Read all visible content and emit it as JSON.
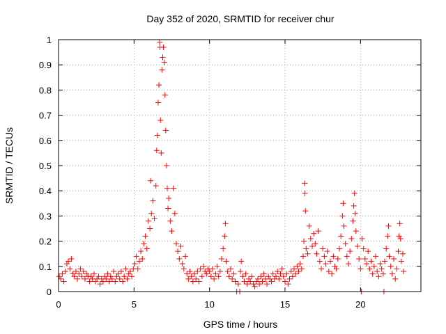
{
  "chart_data": {
    "type": "scatter",
    "title": "Day 352 of 2020, SRMTID for receiver chur",
    "xlabel": "GPS time / hours",
    "ylabel": "SRMTID / TECUs",
    "xlim": [
      0,
      24
    ],
    "ylim": [
      0,
      1
    ],
    "xticks": [
      0,
      5,
      10,
      15,
      20
    ],
    "xtick_labels": [
      "0",
      "5",
      "10",
      "15",
      "20"
    ],
    "yticks": [
      0,
      0.1,
      0.2,
      0.3,
      0.4,
      0.5,
      0.6,
      0.7,
      0.8,
      0.9,
      1
    ],
    "ytick_labels": [
      "0",
      "0.1",
      "0.2",
      "0.3",
      "0.4",
      "0.5",
      "0.6",
      "0.7",
      "0.8",
      "0.9",
      "1"
    ],
    "grid": true,
    "marker": "+",
    "series": [
      {
        "name": "SRMTID",
        "color": "#ff0000",
        "points": [
          [
            0.05,
            0.06
          ],
          [
            0.15,
            0.05
          ],
          [
            0.25,
            0.07
          ],
          [
            0.35,
            0.04
          ],
          [
            0.45,
            0.08
          ],
          [
            0.55,
            0.11
          ],
          [
            0.65,
            0.12
          ],
          [
            0.75,
            0.09
          ],
          [
            0.85,
            0.13
          ],
          [
            0.95,
            0.07
          ],
          [
            1.05,
            0.06
          ],
          [
            1.15,
            0.08
          ],
          [
            1.25,
            0.05
          ],
          [
            1.35,
            0.07
          ],
          [
            1.45,
            0.09
          ],
          [
            1.55,
            0.06
          ],
          [
            1.65,
            0.08
          ],
          [
            1.75,
            0.05
          ],
          [
            1.85,
            0.07
          ],
          [
            1.95,
            0.06
          ],
          [
            2.05,
            0.04
          ],
          [
            2.15,
            0.06
          ],
          [
            2.25,
            0.05
          ],
          [
            2.35,
            0.07
          ],
          [
            2.45,
            0.04
          ],
          [
            2.55,
            0.05
          ],
          [
            2.65,
            0.06
          ],
          [
            2.75,
            0.03
          ],
          [
            2.85,
            0.05
          ],
          [
            2.95,
            0.04
          ],
          [
            3.05,
            0.06
          ],
          [
            3.15,
            0.05
          ],
          [
            3.25,
            0.07
          ],
          [
            3.35,
            0.04
          ],
          [
            3.45,
            0.06
          ],
          [
            3.55,
            0.05
          ],
          [
            3.65,
            0.08
          ],
          [
            3.75,
            0.04
          ],
          [
            3.85,
            0.06
          ],
          [
            3.95,
            0.07
          ],
          [
            4.05,
            0.05
          ],
          [
            4.15,
            0.08
          ],
          [
            4.25,
            0.04
          ],
          [
            4.35,
            0.06
          ],
          [
            4.45,
            0.09
          ],
          [
            4.55,
            0.05
          ],
          [
            4.65,
            0.07
          ],
          [
            4.75,
            0.08
          ],
          [
            4.85,
            0.06
          ],
          [
            4.95,
            0.09
          ],
          [
            5.05,
            0.11
          ],
          [
            5.15,
            0.14
          ],
          [
            5.25,
            0.09
          ],
          [
            5.35,
            0.12
          ],
          [
            5.45,
            0.16
          ],
          [
            5.55,
            0.13
          ],
          [
            5.65,
            0.19
          ],
          [
            5.75,
            0.22
          ],
          [
            5.85,
            0.17
          ],
          [
            5.95,
            0.28
          ],
          [
            6.05,
            0.25
          ],
          [
            6.1,
            0.44
          ],
          [
            6.15,
            0.31
          ],
          [
            6.25,
            0.36
          ],
          [
            6.35,
            0.29
          ],
          [
            6.45,
            0.42
          ],
          [
            6.5,
            0.56
          ],
          [
            6.55,
            0.62
          ],
          [
            6.6,
            0.75
          ],
          [
            6.65,
            0.82
          ],
          [
            6.7,
            0.99
          ],
          [
            6.72,
            0.97
          ],
          [
            6.75,
            0.68
          ],
          [
            6.8,
            0.55
          ],
          [
            6.85,
            0.88
          ],
          [
            6.9,
            0.93
          ],
          [
            6.95,
            0.97
          ],
          [
            7.0,
            0.91
          ],
          [
            7.05,
            0.78
          ],
          [
            7.1,
            0.64
          ],
          [
            7.15,
            0.5
          ],
          [
            7.2,
            0.41
          ],
          [
            7.25,
            0.33
          ],
          [
            7.3,
            0.37
          ],
          [
            7.4,
            0.28
          ],
          [
            7.5,
            0.24
          ],
          [
            7.6,
            0.41
          ],
          [
            7.7,
            0.31
          ],
          [
            7.8,
            0.19
          ],
          [
            7.9,
            0.16
          ],
          [
            8.0,
            0.13
          ],
          [
            8.1,
            0.18
          ],
          [
            8.2,
            0.11
          ],
          [
            8.3,
            0.09
          ],
          [
            8.4,
            0.14
          ],
          [
            8.5,
            0.07
          ],
          [
            8.6,
            0.05
          ],
          [
            8.7,
            0.08
          ],
          [
            8.8,
            0.06
          ],
          [
            8.9,
            0.04
          ],
          [
            9.0,
            0.07
          ],
          [
            9.1,
            0.05
          ],
          [
            9.2,
            0.08
          ],
          [
            9.3,
            0.04
          ],
          [
            9.4,
            0.09
          ],
          [
            9.5,
            0.06
          ],
          [
            9.6,
            0.1
          ],
          [
            9.7,
            0.08
          ],
          [
            9.8,
            0.07
          ],
          [
            9.9,
            0.09
          ],
          [
            10.0,
            0.08
          ],
          [
            10.1,
            0.06
          ],
          [
            10.2,
            0.09
          ],
          [
            10.3,
            0.05
          ],
          [
            10.4,
            0.07
          ],
          [
            10.5,
            0.1
          ],
          [
            10.6,
            0.06
          ],
          [
            10.7,
            0.08
          ],
          [
            10.8,
            0.13
          ],
          [
            10.9,
            0.17
          ],
          [
            11.0,
            0.22
          ],
          [
            11.05,
            0.27
          ],
          [
            11.1,
            0.12
          ],
          [
            11.2,
            0.08
          ],
          [
            11.3,
            0.06
          ],
          [
            11.4,
            0.09
          ],
          [
            11.5,
            0.05
          ],
          [
            11.6,
            0.07
          ],
          [
            11.7,
            0.04
          ],
          [
            11.8,
            0.0
          ],
          [
            11.9,
            0.03
          ],
          [
            12.0,
            0.0
          ],
          [
            12.05,
            0.08
          ],
          [
            12.1,
            0.12
          ],
          [
            12.2,
            0.06
          ],
          [
            12.3,
            0.04
          ],
          [
            12.4,
            0.07
          ],
          [
            12.5,
            0.03
          ],
          [
            12.6,
            0.05
          ],
          [
            12.7,
            0.04
          ],
          [
            12.8,
            0.06
          ],
          [
            12.9,
            0.03
          ],
          [
            13.0,
            0.02
          ],
          [
            13.1,
            0.04
          ],
          [
            13.2,
            0.05
          ],
          [
            13.3,
            0.03
          ],
          [
            13.4,
            0.06
          ],
          [
            13.5,
            0.04
          ],
          [
            13.6,
            0.07
          ],
          [
            13.7,
            0.05
          ],
          [
            13.8,
            0.03
          ],
          [
            13.9,
            0.06
          ],
          [
            14.0,
            0.05
          ],
          [
            14.1,
            0.04
          ],
          [
            14.2,
            0.07
          ],
          [
            14.3,
            0.05
          ],
          [
            14.4,
            0.06
          ],
          [
            14.5,
            0.08
          ],
          [
            14.6,
            0.05
          ],
          [
            14.7,
            0.07
          ],
          [
            14.8,
            0.09
          ],
          [
            14.9,
            0.06
          ],
          [
            15.0,
            0.04
          ],
          [
            15.1,
            0.07
          ],
          [
            15.2,
            0.03
          ],
          [
            15.3,
            0.05
          ],
          [
            15.4,
            0.08
          ],
          [
            15.5,
            0.06
          ],
          [
            15.6,
            0.09
          ],
          [
            15.7,
            0.07
          ],
          [
            15.8,
            0.1
          ],
          [
            15.9,
            0.08
          ],
          [
            16.0,
            0.11
          ],
          [
            16.1,
            0.09
          ],
          [
            16.2,
            0.14
          ],
          [
            16.25,
            0.2
          ],
          [
            16.3,
            0.43
          ],
          [
            16.32,
            0.39
          ],
          [
            16.35,
            0.32
          ],
          [
            16.4,
            0.17
          ],
          [
            16.5,
            0.15
          ],
          [
            16.6,
            0.26
          ],
          [
            16.7,
            0.21
          ],
          [
            16.8,
            0.18
          ],
          [
            16.9,
            0.23
          ],
          [
            17.0,
            0.19
          ],
          [
            17.1,
            0.15
          ],
          [
            17.2,
            0.24
          ],
          [
            17.3,
            0.12
          ],
          [
            17.4,
            0.09
          ],
          [
            17.5,
            0.17
          ],
          [
            17.6,
            0.14
          ],
          [
            17.7,
            0.11
          ],
          [
            17.8,
            0.16
          ],
          [
            17.9,
            0.08
          ],
          [
            18.0,
            0.12
          ],
          [
            18.1,
            0.07
          ],
          [
            18.2,
            0.14
          ],
          [
            18.3,
            0.1
          ],
          [
            18.4,
            0.09
          ],
          [
            18.5,
            0.13
          ],
          [
            18.6,
            0.17
          ],
          [
            18.7,
            0.22
          ],
          [
            18.8,
            0.3
          ],
          [
            18.85,
            0.35
          ],
          [
            18.9,
            0.26
          ],
          [
            19.0,
            0.19
          ],
          [
            19.1,
            0.14
          ],
          [
            19.2,
            0.11
          ],
          [
            19.3,
            0.16
          ],
          [
            19.4,
            0.21
          ],
          [
            19.5,
            0.28
          ],
          [
            19.55,
            0.34
          ],
          [
            19.6,
            0.39
          ],
          [
            19.65,
            0.31
          ],
          [
            19.7,
            0.24
          ],
          [
            19.8,
            0.18
          ],
          [
            19.9,
            0.13
          ],
          [
            20.0,
            0.09
          ],
          [
            20.05,
            0.0
          ],
          [
            20.1,
            0.21
          ],
          [
            20.2,
            0.17
          ],
          [
            20.3,
            0.13
          ],
          [
            20.4,
            0.11
          ],
          [
            20.5,
            0.16
          ],
          [
            20.6,
            0.09
          ],
          [
            20.7,
            0.12
          ],
          [
            20.8,
            0.07
          ],
          [
            20.9,
            0.1
          ],
          [
            21.0,
            0.14
          ],
          [
            21.1,
            0.08
          ],
          [
            21.2,
            0.06
          ],
          [
            21.3,
            0.11
          ],
          [
            21.4,
            0.09
          ],
          [
            21.5,
            0.07
          ],
          [
            21.55,
            0.0
          ],
          [
            21.6,
            0.12
          ],
          [
            21.7,
            0.17
          ],
          [
            21.8,
            0.22
          ],
          [
            21.85,
            0.26
          ],
          [
            21.9,
            0.14
          ],
          [
            22.0,
            0.1
          ],
          [
            22.1,
            0.07
          ],
          [
            22.2,
            0.13
          ],
          [
            22.3,
            0.05
          ],
          [
            22.4,
            0.09
          ],
          [
            22.5,
            0.16
          ],
          [
            22.55,
            0.22
          ],
          [
            22.6,
            0.27
          ],
          [
            22.65,
            0.21
          ],
          [
            22.7,
            0.12
          ],
          [
            22.8,
            0.15
          ],
          [
            22.85,
            0.08
          ]
        ]
      }
    ]
  }
}
